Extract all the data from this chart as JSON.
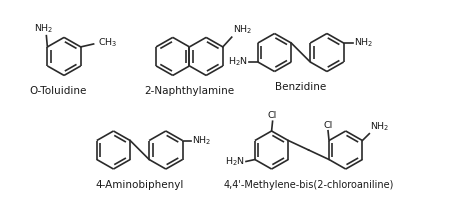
{
  "background_color": "#ffffff",
  "line_color": "#2a2a2a",
  "text_color": "#1a1a1a",
  "line_width": 1.2,
  "font_size_label": 7.5,
  "font_size_group": 6.8,
  "labels": {
    "o_toluidine": "O-Toluidine",
    "naphthylamine": "2-Naphthylamine",
    "benzidine": "Benzidine",
    "aminobiphenyl": "4-Aminobiphenyl",
    "moca": "4,4'-Methylene-bis(2-chloroaniline)"
  }
}
